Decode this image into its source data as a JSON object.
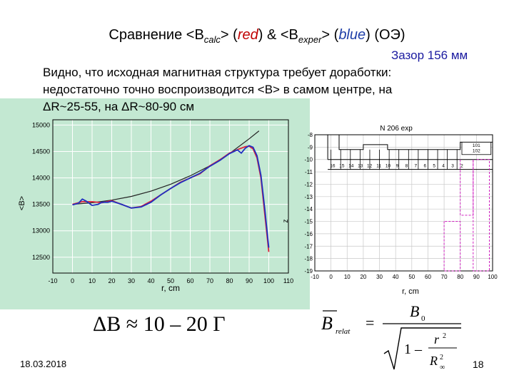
{
  "slide": {
    "title_prefix": "Сравнение <B",
    "title_calc_sub": "calc",
    "title_mid1": "> (",
    "title_red_word": "red",
    "title_mid2": ") & <B",
    "title_exper_sub": "exper",
    "title_mid3": "> (",
    "title_blue_word": "blue",
    "title_suffix": ") (ОЭ)",
    "gap_label": "Зазор 156 мм",
    "paragraph_lines": [
      "Видно, что исходная магнитная структура требует доработки:",
      "недостаточно точно воспроизводится <B> в самом центре,   на",
      "ΔR~25-55, на ΔR~80-90 см"
    ],
    "formula_left": "ΔB ≈ 10 – 20  Г",
    "formula_right": {
      "lhs_main": "B",
      "lhs_sub": "relat",
      "equals": "=",
      "numerator": "B",
      "numerator_sub": "0",
      "denom_one": "1 –",
      "denom_num": "r",
      "denom_num_sup": "2",
      "denom_den": "R",
      "denom_den_sup": "2",
      "denom_den_sub": "∞"
    },
    "date": "18.03.2018",
    "page_number": "18"
  },
  "chart_data": [
    {
      "type": "line",
      "xlabel": "r, cm",
      "ylabel": "<B>",
      "xlim": [
        -10,
        110
      ],
      "ylim": [
        12200,
        15100
      ],
      "x_ticks": [
        -10,
        0,
        10,
        20,
        30,
        40,
        50,
        60,
        70,
        80,
        90,
        100,
        110
      ],
      "y_ticks": [
        12500,
        13000,
        13500,
        14000,
        14500,
        15000
      ],
      "grid": true,
      "series": [
        {
          "color": "#222222",
          "x": [
            0,
            10,
            20,
            30,
            40,
            50,
            60,
            70,
            80,
            90,
            95
          ],
          "values": [
            13500,
            13530,
            13580,
            13650,
            13750,
            13880,
            14040,
            14230,
            14460,
            14740,
            14890
          ]
        },
        {
          "color": "#e0203a",
          "x": [
            0,
            5,
            10,
            15,
            20,
            25,
            30,
            35,
            40,
            45,
            50,
            55,
            60,
            65,
            70,
            75,
            80,
            85,
            88,
            90,
            92,
            94,
            96,
            98,
            100
          ],
          "values": [
            13500,
            13550,
            13550,
            13530,
            13570,
            13500,
            13430,
            13460,
            13560,
            13680,
            13800,
            13920,
            14000,
            14080,
            14230,
            14340,
            14470,
            14550,
            14590,
            14600,
            14550,
            14380,
            14000,
            13300,
            12600
          ]
        },
        {
          "color": "#2030c0",
          "x": [
            0,
            3,
            5,
            7,
            10,
            13,
            15,
            18,
            20,
            25,
            30,
            35,
            40,
            45,
            50,
            55,
            60,
            65,
            70,
            75,
            80,
            84,
            86,
            88,
            90,
            92,
            94,
            96,
            98,
            100
          ],
          "values": [
            13490,
            13520,
            13600,
            13560,
            13480,
            13500,
            13540,
            13540,
            13560,
            13500,
            13430,
            13450,
            13540,
            13680,
            13800,
            13910,
            14000,
            14090,
            14220,
            14330,
            14460,
            14530,
            14470,
            14560,
            14610,
            14580,
            14420,
            14050,
            13400,
            12680
          ]
        }
      ]
    },
    {
      "type": "bar",
      "title": "N 206 exp",
      "xlabel": "r, cm",
      "ylabel": "z",
      "xlim": [
        -10,
        100
      ],
      "ylim": [
        -19,
        -8
      ],
      "x_ticks": [
        -10,
        0,
        10,
        20,
        30,
        40,
        50,
        60,
        70,
        80,
        90,
        100
      ],
      "y_ticks": [
        -8,
        -9,
        -10,
        -11,
        -12,
        -13,
        -14,
        -15,
        -16,
        -17,
        -18,
        -19
      ],
      "coil_numbers": [
        "16",
        "15",
        "14",
        "13",
        "12",
        "11",
        "10",
        "9",
        "8",
        "7",
        "6",
        "5",
        "4",
        "3",
        "2"
      ],
      "legend_labels": [
        "101",
        "102"
      ]
    }
  ]
}
